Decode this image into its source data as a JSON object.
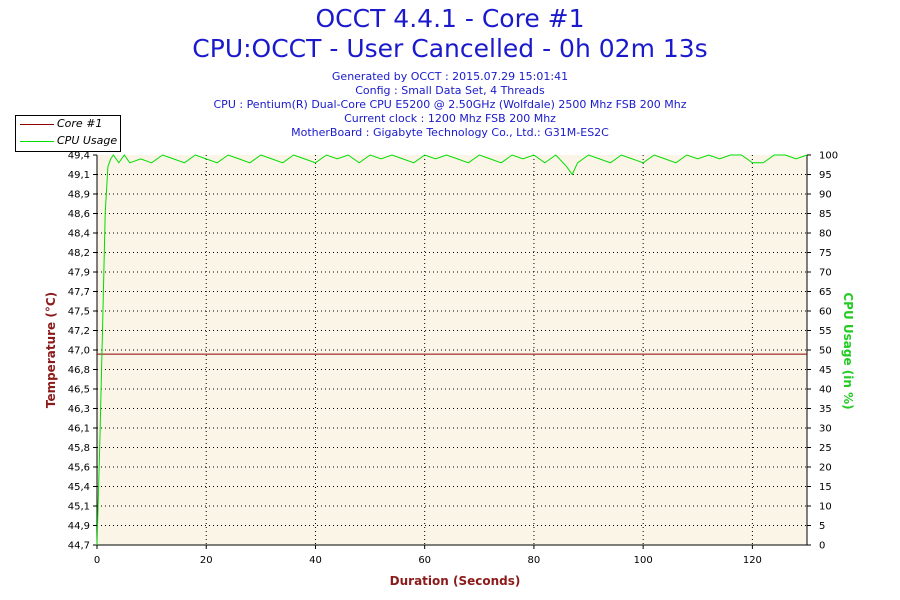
{
  "header": {
    "title": "OCCT 4.4.1 - Core #1",
    "subtitle": "CPU:OCCT - User Cancelled - 0h 02m 13s",
    "generated": "Generated by OCCT : 2015.07.29 15:01:41",
    "config": "Config : Small Data Set, 4 Threads",
    "cpu": "CPU : Pentium(R) Dual-Core CPU E5200 @ 2.50GHz (Wolfdale) 2500 Mhz FSB 200 Mhz",
    "clock": "Current clock : 1200 Mhz FSB 200 Mhz",
    "motherboard": "MotherBoard : Gigabyte Technology Co., Ltd.: G31M-ES2C"
  },
  "legend": {
    "core_label": "Core #1",
    "cpu_label": "CPU Usage"
  },
  "colors": {
    "core": "#8b0000",
    "cpu": "#00dd00",
    "title": "#1a1acc",
    "axis_label_left": "#8b1a1a",
    "axis_label_right": "#22cc22",
    "plot_bg": "#fbf5e8"
  },
  "chart_data": {
    "type": "line",
    "xlabel": "Duration (Seconds)",
    "ylabel": "Temperature (°C)",
    "y2label": "CPU Usage (in %)",
    "xlim": [
      0,
      130
    ],
    "ylim": [
      44.7,
      49.4
    ],
    "y2lim": [
      0,
      100
    ],
    "x_ticks": [
      "0",
      "20",
      "40",
      "60",
      "80",
      "100",
      "120"
    ],
    "y_ticks": [
      "44,7",
      "44,9",
      "45,1",
      "45,4",
      "45,6",
      "45,8",
      "46,1",
      "46,3",
      "46,5",
      "46,8",
      "47,0",
      "47,2",
      "47,5",
      "47,7",
      "47,9",
      "48,2",
      "48,4",
      "48,6",
      "48,9",
      "49,1",
      "49,4"
    ],
    "y2_ticks": [
      "0",
      "5",
      "10",
      "15",
      "20",
      "25",
      "30",
      "35",
      "40",
      "45",
      "50",
      "55",
      "60",
      "65",
      "70",
      "75",
      "80",
      "85",
      "90",
      "95",
      "100"
    ],
    "grid": true,
    "legend_position": "top-left",
    "series": [
      {
        "name": "Core #1",
        "axis": "left",
        "x": [
          0,
          130
        ],
        "y": [
          47.0,
          47.0
        ]
      },
      {
        "name": "CPU Usage",
        "axis": "right",
        "x": [
          0,
          0.5,
          1,
          1.5,
          2,
          2.5,
          3,
          4,
          5,
          6,
          8,
          10,
          12,
          14,
          16,
          18,
          20,
          22,
          24,
          26,
          28,
          30,
          32,
          34,
          36,
          38,
          40,
          42,
          44,
          46,
          48,
          50,
          52,
          54,
          56,
          58,
          60,
          62,
          64,
          66,
          68,
          70,
          72,
          74,
          76,
          78,
          80,
          82,
          84,
          86,
          87,
          88,
          90,
          92,
          94,
          96,
          98,
          100,
          102,
          104,
          106,
          108,
          110,
          112,
          114,
          116,
          118,
          120,
          122,
          124,
          126,
          128,
          130
        ],
        "y": [
          0,
          25,
          55,
          85,
          97,
          99,
          100,
          98,
          100,
          98,
          99,
          98,
          100,
          99,
          98,
          100,
          99,
          98,
          100,
          99,
          98,
          100,
          99,
          98,
          100,
          99,
          98,
          100,
          99,
          100,
          98,
          100,
          99,
          100,
          99,
          98,
          100,
          99,
          100,
          99,
          98,
          100,
          99,
          98,
          100,
          99,
          100,
          98,
          100,
          97,
          95,
          98,
          100,
          99,
          98,
          100,
          99,
          98,
          100,
          99,
          98,
          100,
          99,
          100,
          99,
          100,
          100,
          98,
          98,
          100,
          100,
          99,
          100
        ]
      }
    ]
  }
}
